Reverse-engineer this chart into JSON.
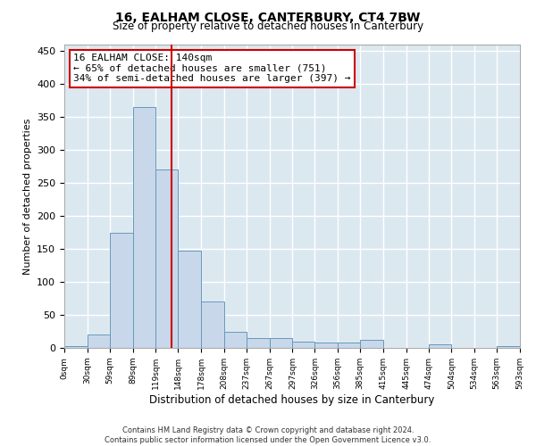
{
  "title": "16, EALHAM CLOSE, CANTERBURY, CT4 7BW",
  "subtitle": "Size of property relative to detached houses in Canterbury",
  "xlabel": "Distribution of detached houses by size in Canterbury",
  "ylabel": "Number of detached properties",
  "bar_color": "#c8d8ea",
  "bar_edge_color": "#6699bb",
  "bg_color": "#dce8f0",
  "grid_color": "#ffffff",
  "annotation_text": "16 EALHAM CLOSE: 140sqm\n← 65% of detached houses are smaller (751)\n34% of semi-detached houses are larger (397) →",
  "annotation_box_color": "#ffffff",
  "annotation_box_edge": "#cc0000",
  "vline_x": 140,
  "vline_color": "#cc0000",
  "footnote": "Contains HM Land Registry data © Crown copyright and database right 2024.\nContains public sector information licensed under the Open Government Licence v3.0.",
  "bins": [
    0,
    30,
    59,
    89,
    119,
    148,
    178,
    208,
    237,
    267,
    297,
    326,
    356,
    385,
    415,
    445,
    474,
    504,
    534,
    563,
    593
  ],
  "bar_heights": [
    3,
    20,
    175,
    365,
    270,
    148,
    70,
    25,
    15,
    15,
    10,
    8,
    8,
    12,
    0,
    0,
    5,
    0,
    0,
    3
  ],
  "ylim": [
    0,
    460
  ],
  "yticks": [
    0,
    50,
    100,
    150,
    200,
    250,
    300,
    350,
    400,
    450
  ]
}
